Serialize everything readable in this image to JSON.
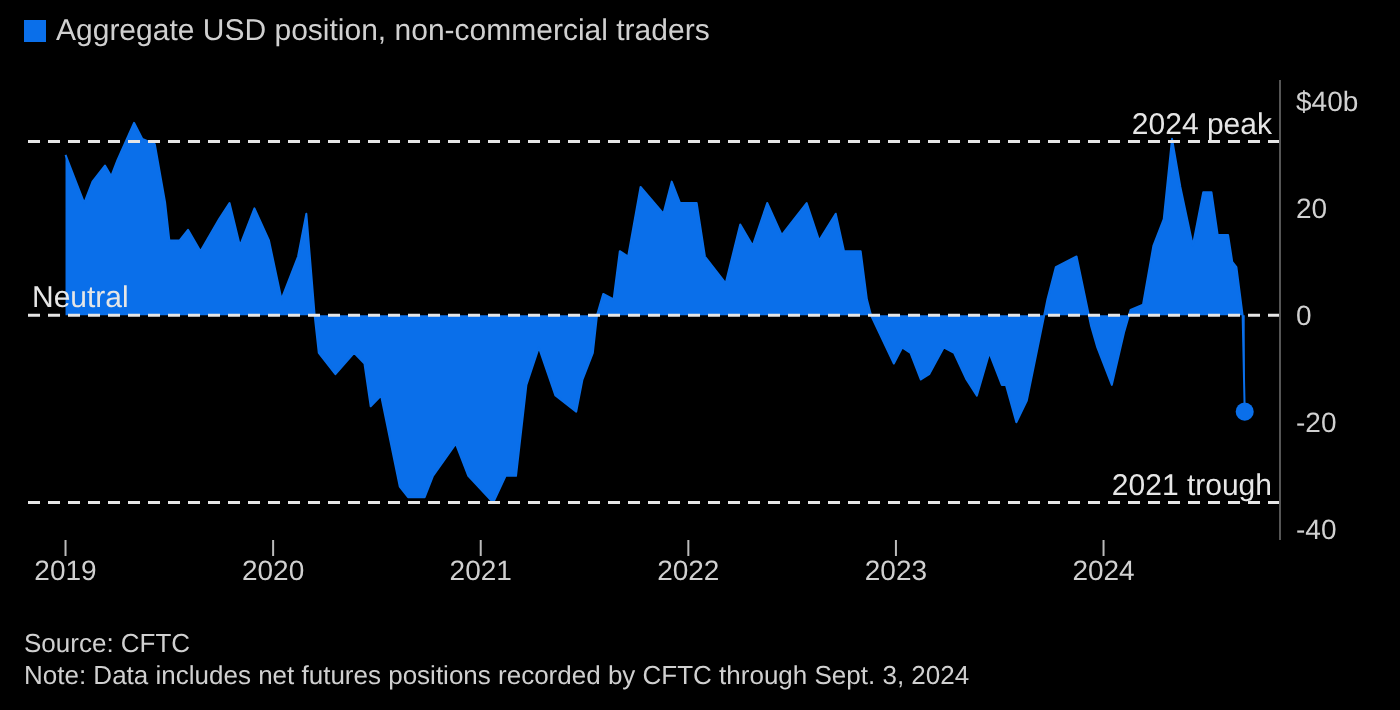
{
  "chart_data": {
    "type": "area",
    "legend": "top left",
    "grid": false,
    "xlim": [
      2018.8,
      2024.85
    ],
    "xticks": [
      2019,
      2020,
      2021,
      2022,
      2023,
      2024
    ],
    "ylim": [
      -42,
      44
    ],
    "yticks": [
      {
        "value": 40,
        "label": "$40b"
      },
      20,
      0,
      -20,
      -40
    ],
    "series": [
      {
        "name": "Aggregate USD position, non-commercial traders",
        "color": "#0a6fea",
        "x": [
          2019,
          2019.09,
          2019.13,
          2019.19,
          2019.22,
          2019.25,
          2019.33,
          2019.37,
          2019.43,
          2019.48,
          2019.5,
          2019.55,
          2019.59,
          2019.65,
          2019.74,
          2019.79,
          2019.84,
          2019.91,
          2019.98,
          2020.04,
          2020.12,
          2020.16,
          2020.2,
          2020.22,
          2020.3,
          2020.39,
          2020.44,
          2020.47,
          2020.52,
          2020.61,
          2020.65,
          2020.73,
          2020.77,
          2020.88,
          2020.94,
          2021.06,
          2021.12,
          2021.17,
          2021.22,
          2021.28,
          2021.36,
          2021.46,
          2021.49,
          2021.54,
          2021.56,
          2021.59,
          2021.64,
          2021.67,
          2021.71,
          2021.77,
          2021.88,
          2021.92,
          2021.96,
          2022.04,
          2022.08,
          2022.18,
          2022.25,
          2022.31,
          2022.38,
          2022.45,
          2022.49,
          2022.57,
          2022.63,
          2022.71,
          2022.75,
          2022.83,
          2022.86,
          2022.88,
          2022.99,
          2023.03,
          2023.07,
          2023.12,
          2023.16,
          2023.23,
          2023.28,
          2023.34,
          2023.39,
          2023.45,
          2023.51,
          2023.53,
          2023.58,
          2023.63,
          2023.73,
          2023.77,
          2023.87,
          2023.94,
          2023.97,
          2024.04,
          2024.1,
          2024.13,
          2024.19,
          2024.24,
          2024.29,
          2024.33,
          2024.37,
          2024.43,
          2024.48,
          2024.52,
          2024.55,
          2024.6,
          2024.62,
          2024.64,
          2024.67,
          2024.68
        ],
        "values": [
          30,
          21,
          25,
          28,
          26,
          29,
          36,
          33,
          32,
          21,
          14,
          14,
          16,
          12,
          18,
          21,
          13,
          20,
          14,
          3,
          11,
          19,
          0,
          -7,
          -11,
          -7,
          -9,
          -17,
          -15,
          -32,
          -34,
          -34,
          -30,
          -24,
          -30,
          -35,
          -30,
          -30,
          -13,
          -6,
          -15,
          -18,
          -12,
          -7,
          0,
          4,
          3,
          12,
          11,
          24,
          19,
          25,
          21,
          21,
          11,
          6,
          17,
          13,
          21,
          15,
          17,
          21,
          14,
          19,
          12,
          12,
          3,
          0,
          -9,
          -6,
          -7,
          -12,
          -11,
          -6,
          -7,
          -12,
          -15,
          -7,
          -13,
          -13,
          -20,
          -16,
          3,
          9,
          11,
          -2,
          -6,
          -13,
          -3,
          1,
          2,
          13,
          18,
          33,
          24,
          13,
          23,
          23,
          15,
          15,
          10,
          9,
          0,
          -18
        ]
      },
      {
        "type": "scatter",
        "marker": "circle",
        "color": "#0a6fea",
        "x": [
          2024.68
        ],
        "values": [
          -18
        ]
      }
    ],
    "ref_lines": [
      {
        "axis": "y",
        "value": 0,
        "label": "Neutral",
        "color": "#e6e6e6",
        "line_style": "dashed"
      },
      {
        "axis": "y",
        "value": 32.5,
        "label": "2024 peak",
        "color": "#e6e6e6",
        "line_style": "dashed"
      },
      {
        "axis": "y",
        "value": -35,
        "label": "2021 trough",
        "color": "#e6e6e6",
        "line_style": "dashed"
      }
    ],
    "annotations": [
      "Source: CFTC",
      "Note: Data includes net futures positions recorded by CFTC through Sept. 3, 2024"
    ]
  }
}
